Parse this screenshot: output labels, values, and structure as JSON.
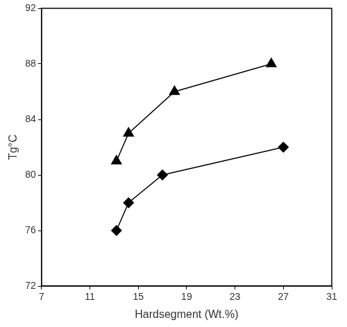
{
  "chart_data": {
    "type": "line",
    "x_label": "Hardsegment (Wt.%)",
    "y_label": "Tg°C",
    "xlim": [
      7,
      31
    ],
    "xticks": [
      7,
      11,
      15,
      19,
      23,
      27,
      31
    ],
    "ylim": [
      72,
      92
    ],
    "yticks": [
      72,
      76,
      80,
      84,
      88,
      92
    ],
    "grid": false,
    "series": [
      {
        "color": "#000000",
        "marker": "triangle",
        "x": [
          13.2,
          14.2,
          18,
          26
        ],
        "values": [
          81,
          83,
          86,
          88
        ]
      },
      {
        "color": "#000000",
        "marker": "diamond",
        "x": [
          13.2,
          14.2,
          17,
          27
        ],
        "values": [
          76,
          78,
          80,
          82
        ]
      }
    ]
  }
}
